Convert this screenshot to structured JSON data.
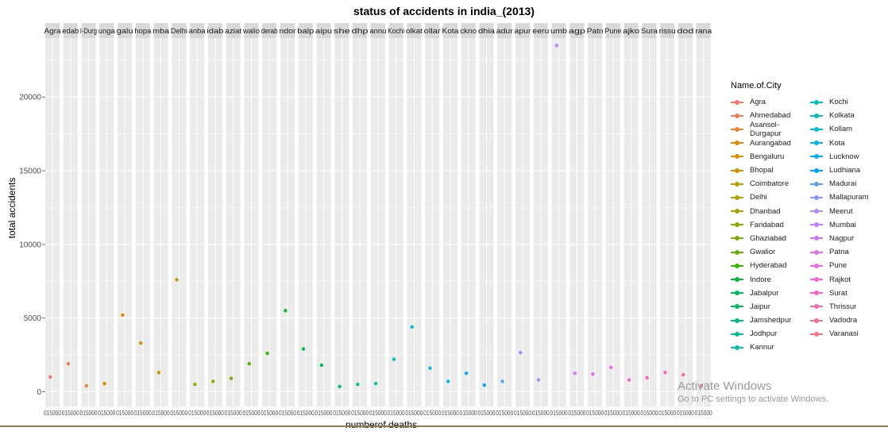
{
  "chart_data": {
    "type": "scatter",
    "title": "status of accidents in india_(2013)",
    "xlabel": "numberof deaths",
    "ylabel": "total accidents",
    "ylim": [
      -1000,
      24000
    ],
    "yticks": [
      0,
      5000,
      10000,
      15000,
      20000
    ],
    "grid": true,
    "faceted_by": "Name.of.City",
    "legend_title": "Name.of.City",
    "legend_position": "right",
    "facet_strip_labels": [
      "Agra",
      "edab",
      "l-Durg",
      "unga",
      "galu",
      "hopa",
      "mba",
      "Delhi",
      "anba",
      "idab",
      "aziat",
      "walio",
      "derab",
      "ndor",
      "balp",
      "aipu",
      "she",
      "dhp",
      "annu",
      "Kochi",
      "olkat",
      "ollar",
      "Kota",
      "ckno",
      "dhia",
      "adur",
      "apur",
      "eeru",
      "umb",
      "agp",
      "Patn",
      "Pune",
      "ajko",
      "Sura",
      "rissu",
      "dod",
      "rana"
    ],
    "x_tick_label": "015000",
    "series": [
      {
        "name": "Agra",
        "y": 1000,
        "color": "#F8766D"
      },
      {
        "name": "Ahmedabad",
        "y": 1900,
        "color": "#F27D52"
      },
      {
        "name": "Asansol-Durgapur",
        "y": 400,
        "color": "#EA8331"
      },
      {
        "name": "Aurangabad",
        "y": 550,
        "color": "#E18A00"
      },
      {
        "name": "Bengaluru",
        "y": 5200,
        "color": "#D89000"
      },
      {
        "name": "Bhopal",
        "y": 3300,
        "color": "#CC9600"
      },
      {
        "name": "Coimbatore",
        "y": 1300,
        "color": "#C09B00"
      },
      {
        "name": "Delhi",
        "y": 7600,
        "color": "#B2A000"
      },
      {
        "name": "Dhanbad",
        "y": 500,
        "color": "#A3A500"
      },
      {
        "name": "Faridabad",
        "y": 700,
        "color": "#92A900"
      },
      {
        "name": "Ghaziabad",
        "y": 900,
        "color": "#7CAE00"
      },
      {
        "name": "Gwalior",
        "y": 1900,
        "color": "#63B200"
      },
      {
        "name": "Hyderabad",
        "y": 2600,
        "color": "#39B600"
      },
      {
        "name": "Indore",
        "y": 5500,
        "color": "#00B935"
      },
      {
        "name": "Jabalpur",
        "y": 2900,
        "color": "#00BB4E"
      },
      {
        "name": "Jaipur",
        "y": 1800,
        "color": "#00BD5F"
      },
      {
        "name": "Jamshedpur",
        "y": 350,
        "color": "#00BF7D"
      },
      {
        "name": "Jodhpur",
        "y": 500,
        "color": "#00C08B"
      },
      {
        "name": "Kannur",
        "y": 550,
        "color": "#00C1A3"
      },
      {
        "name": "Kochi",
        "y": 2200,
        "color": "#00C0B8"
      },
      {
        "name": "Kolkata",
        "y": 4400,
        "color": "#00BFC4"
      },
      {
        "name": "Kollam",
        "y": 1600,
        "color": "#00BCD6"
      },
      {
        "name": "Kota",
        "y": 700,
        "color": "#00B8E5"
      },
      {
        "name": "Lucknow",
        "y": 1250,
        "color": "#00B0F6"
      },
      {
        "name": "Ludhiana",
        "y": 450,
        "color": "#00A5FF"
      },
      {
        "name": "Madurai",
        "y": 700,
        "color": "#5C9DFF"
      },
      {
        "name": "Mallapuram",
        "y": 2650,
        "color": "#8A95FF"
      },
      {
        "name": "Meerut",
        "y": 800,
        "color": "#AB8CFF"
      },
      {
        "name": "Mumbai",
        "y": 23500,
        "color": "#C27FFF"
      },
      {
        "name": "Nagpur",
        "y": 1250,
        "color": "#D674FD"
      },
      {
        "name": "Patna",
        "y": 1200,
        "color": "#E76BF3"
      },
      {
        "name": "Pune",
        "y": 1650,
        "color": "#F265E7"
      },
      {
        "name": "Rajkot",
        "y": 800,
        "color": "#FB61D7"
      },
      {
        "name": "Surat",
        "y": 950,
        "color": "#FF62C5"
      },
      {
        "name": "Thrissur",
        "y": 1300,
        "color": "#FF65B0"
      },
      {
        "name": "Vadodra",
        "y": 1150,
        "color": "#FF6A9A"
      },
      {
        "name": "Varanasi",
        "y": 400,
        "color": "#FC7083"
      }
    ]
  },
  "watermark": {
    "line1": "Activate Windows",
    "line2": "Go to PC settings to activate Windows."
  }
}
